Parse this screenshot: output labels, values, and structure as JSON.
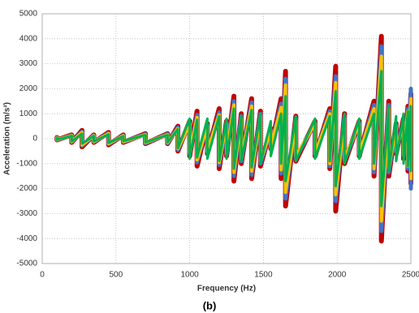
{
  "chart_data": {
    "type": "line",
    "x_label": "Frequency (Hz)",
    "y_label": "Acceleration (m/s²)",
    "caption": "(b)",
    "x": [
      100,
      100,
      200,
      200,
      270,
      270,
      350,
      350,
      450,
      450,
      550,
      550,
      700,
      700,
      850,
      850,
      920,
      920,
      1000,
      1000,
      1050,
      1050,
      1120,
      1120,
      1200,
      1200,
      1250,
      1250,
      1300,
      1300,
      1350,
      1350,
      1420,
      1420,
      1480,
      1480,
      1550,
      1550,
      1620,
      1620,
      1650,
      1650,
      1720,
      1720,
      1850,
      1850,
      1950,
      1950,
      1990,
      1990,
      2050,
      2050,
      2150,
      2150,
      2250,
      2250,
      2300,
      2300,
      2350,
      2350,
      2400,
      2400,
      2450,
      2450,
      2480,
      2480,
      2500,
      2500
    ],
    "series": [
      {
        "color": "#c00000",
        "values": [
          50,
          -50,
          150,
          -150,
          330,
          -330,
          150,
          -150,
          250,
          -250,
          150,
          -150,
          200,
          -200,
          200,
          -200,
          500,
          -500,
          700,
          -700,
          1100,
          -1100,
          600,
          -600,
          1200,
          -1200,
          700,
          -700,
          1700,
          -1700,
          1000,
          -1000,
          1600,
          -1600,
          1100,
          -1100,
          400,
          -400,
          1600,
          -1600,
          2700,
          -2700,
          900,
          -900,
          700,
          -700,
          1200,
          -1200,
          2900,
          -2900,
          1000,
          -1000,
          700,
          -700,
          1500,
          -1500,
          4100,
          -4100,
          1500,
          -1500,
          600,
          -600,
          800,
          -800,
          1300,
          -1300,
          1800,
          -1800
        ]
      },
      {
        "color": "#4472c4",
        "values": [
          45,
          -45,
          130,
          -130,
          280,
          -280,
          130,
          -130,
          220,
          -220,
          130,
          -130,
          180,
          -180,
          180,
          -180,
          450,
          -450,
          620,
          -620,
          950,
          -950,
          550,
          -550,
          1050,
          -1050,
          650,
          -650,
          1500,
          -1500,
          900,
          -900,
          1450,
          -1450,
          1000,
          -1000,
          350,
          -350,
          1400,
          -1400,
          2400,
          -2400,
          800,
          -800,
          650,
          -650,
          1100,
          -1100,
          2500,
          -2500,
          900,
          -900,
          650,
          -650,
          1350,
          -1350,
          3700,
          -3700,
          1350,
          -1350,
          550,
          -550,
          700,
          -700,
          1200,
          -1200,
          2000,
          -2000
        ]
      },
      {
        "color": "#ffc000",
        "values": [
          40,
          -40,
          120,
          -120,
          250,
          -250,
          120,
          -120,
          200,
          -200,
          120,
          -120,
          160,
          -160,
          160,
          -160,
          400,
          -400,
          560,
          -560,
          850,
          -850,
          500,
          -500,
          950,
          -950,
          600,
          -600,
          1350,
          -1350,
          800,
          -800,
          1300,
          -1300,
          900,
          -900,
          320,
          -320,
          1250,
          -1250,
          2150,
          -2150,
          700,
          -700,
          600,
          -600,
          1000,
          -1000,
          2250,
          -2250,
          800,
          -800,
          600,
          -600,
          1200,
          -1200,
          3300,
          -3300,
          1200,
          -1200,
          500,
          -500,
          650,
          -650,
          1100,
          -1100,
          1600,
          -1600
        ]
      },
      {
        "color": "#00b050",
        "values": [
          40,
          -40,
          110,
          -110,
          200,
          -200,
          110,
          -110,
          170,
          -170,
          100,
          -100,
          150,
          -150,
          150,
          -150,
          380,
          -380,
          800,
          -800,
          750,
          -750,
          800,
          -800,
          900,
          -900,
          800,
          -800,
          1200,
          -1200,
          900,
          -900,
          1150,
          -1150,
          1000,
          -1000,
          700,
          -700,
          1000,
          -1000,
          1700,
          -1700,
          900,
          -900,
          800,
          -800,
          900,
          -900,
          1900,
          -1900,
          1000,
          -1000,
          800,
          -800,
          1000,
          -1000,
          2700,
          -2700,
          1300,
          -1300,
          900,
          -900,
          1000,
          -1000,
          1100,
          -1100,
          1300,
          -1300
        ]
      }
    ],
    "xlim": [
      0,
      2500
    ],
    "xticks": [
      0,
      500,
      1000,
      1500,
      2000,
      2500
    ],
    "ylim": [
      -5000,
      5000
    ],
    "yticks": [
      -5000,
      -4000,
      -3000,
      -2000,
      -1000,
      0,
      1000,
      2000,
      3000,
      4000,
      5000
    ],
    "grid": true
  }
}
